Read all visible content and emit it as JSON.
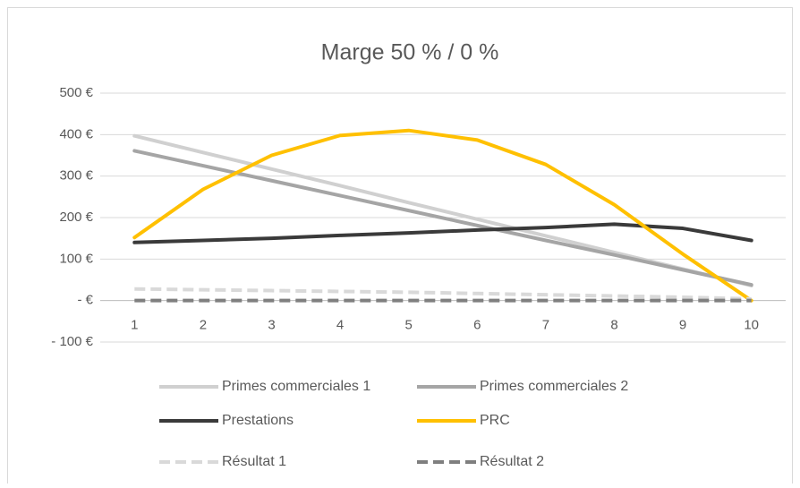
{
  "chart_data": {
    "type": "line",
    "title": "Marge 50 % / 0 %",
    "categories": [
      "1",
      "2",
      "3",
      "4",
      "5",
      "6",
      "7",
      "8",
      "9",
      "10"
    ],
    "series": [
      {
        "name": "Primes commerciales 1",
        "color": "#d0d0d0",
        "dashed": false,
        "values": [
          397,
          357,
          317,
          277,
          236,
          196,
          156,
          116,
          76,
          36
        ]
      },
      {
        "name": "Primes commerciales 2",
        "color": "#a5a5a5",
        "dashed": false,
        "values": [
          361,
          325,
          289,
          253,
          217,
          181,
          145,
          110,
          74,
          38
        ]
      },
      {
        "name": "Prestations",
        "color": "#3a3a3a",
        "dashed": false,
        "values": [
          140,
          145,
          150,
          157,
          163,
          170,
          176,
          184,
          174,
          145
        ]
      },
      {
        "name": "PRC",
        "color": "#ffc000",
        "dashed": false,
        "values": [
          152,
          268,
          350,
          398,
          410,
          387,
          328,
          231,
          112,
          0
        ]
      },
      {
        "name": "Résultat 1",
        "color": "#d9d9d9",
        "dashed": true,
        "values": [
          28,
          26,
          24,
          22,
          20,
          17,
          14,
          11,
          8,
          4
        ]
      },
      {
        "name": "Résultat 2",
        "color": "#7f7f7f",
        "dashed": true,
        "values": [
          0,
          0,
          0,
          0,
          0,
          0,
          0,
          0,
          0,
          0
        ]
      }
    ],
    "ylim": [
      -100,
      500
    ],
    "yticks": [
      {
        "value": -100,
        "label": "- 100 €"
      },
      {
        "value": 0,
        "label": "-  €"
      },
      {
        "value": 100,
        "label": "100 €"
      },
      {
        "value": 200,
        "label": "200 €"
      },
      {
        "value": 300,
        "label": "300 €"
      },
      {
        "value": 400,
        "label": "400 €"
      },
      {
        "value": 500,
        "label": "500 €"
      }
    ],
    "grid": true,
    "legend": "bottom"
  }
}
